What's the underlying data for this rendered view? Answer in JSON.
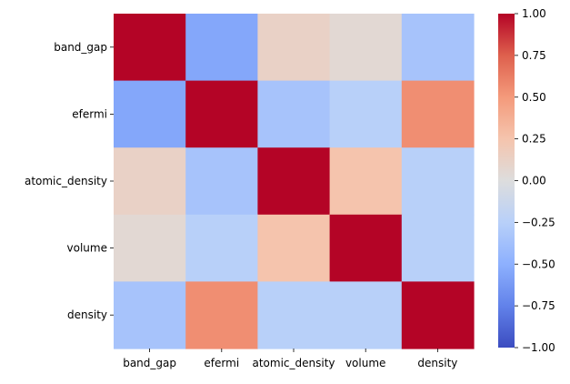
{
  "chart_data": {
    "type": "heatmap",
    "title": "",
    "xlabel": "",
    "ylabel": "",
    "row_labels": [
      "band_gap",
      "efermi",
      "atomic_density",
      "volume",
      "density"
    ],
    "col_labels": [
      "band_gap",
      "efermi",
      "atomic_density",
      "volume",
      "density"
    ],
    "values": [
      [
        1.0,
        -0.55,
        0.12,
        0.05,
        -0.35
      ],
      [
        -0.55,
        1.0,
        -0.35,
        -0.25,
        0.55
      ],
      [
        0.12,
        -0.35,
        1.0,
        0.25,
        -0.25
      ],
      [
        0.05,
        -0.25,
        0.25,
        1.0,
        -0.25
      ],
      [
        -0.35,
        0.55,
        -0.25,
        -0.25,
        1.0
      ]
    ],
    "colormap": "coolwarm",
    "vmin": -1.0,
    "vmax": 1.0,
    "colorbar": {
      "ticks": [
        "1.00",
        "0.75",
        "0.50",
        "0.25",
        "0.00",
        "−0.25",
        "−0.50",
        "−0.75",
        "−1.00"
      ],
      "placement": "right"
    }
  }
}
